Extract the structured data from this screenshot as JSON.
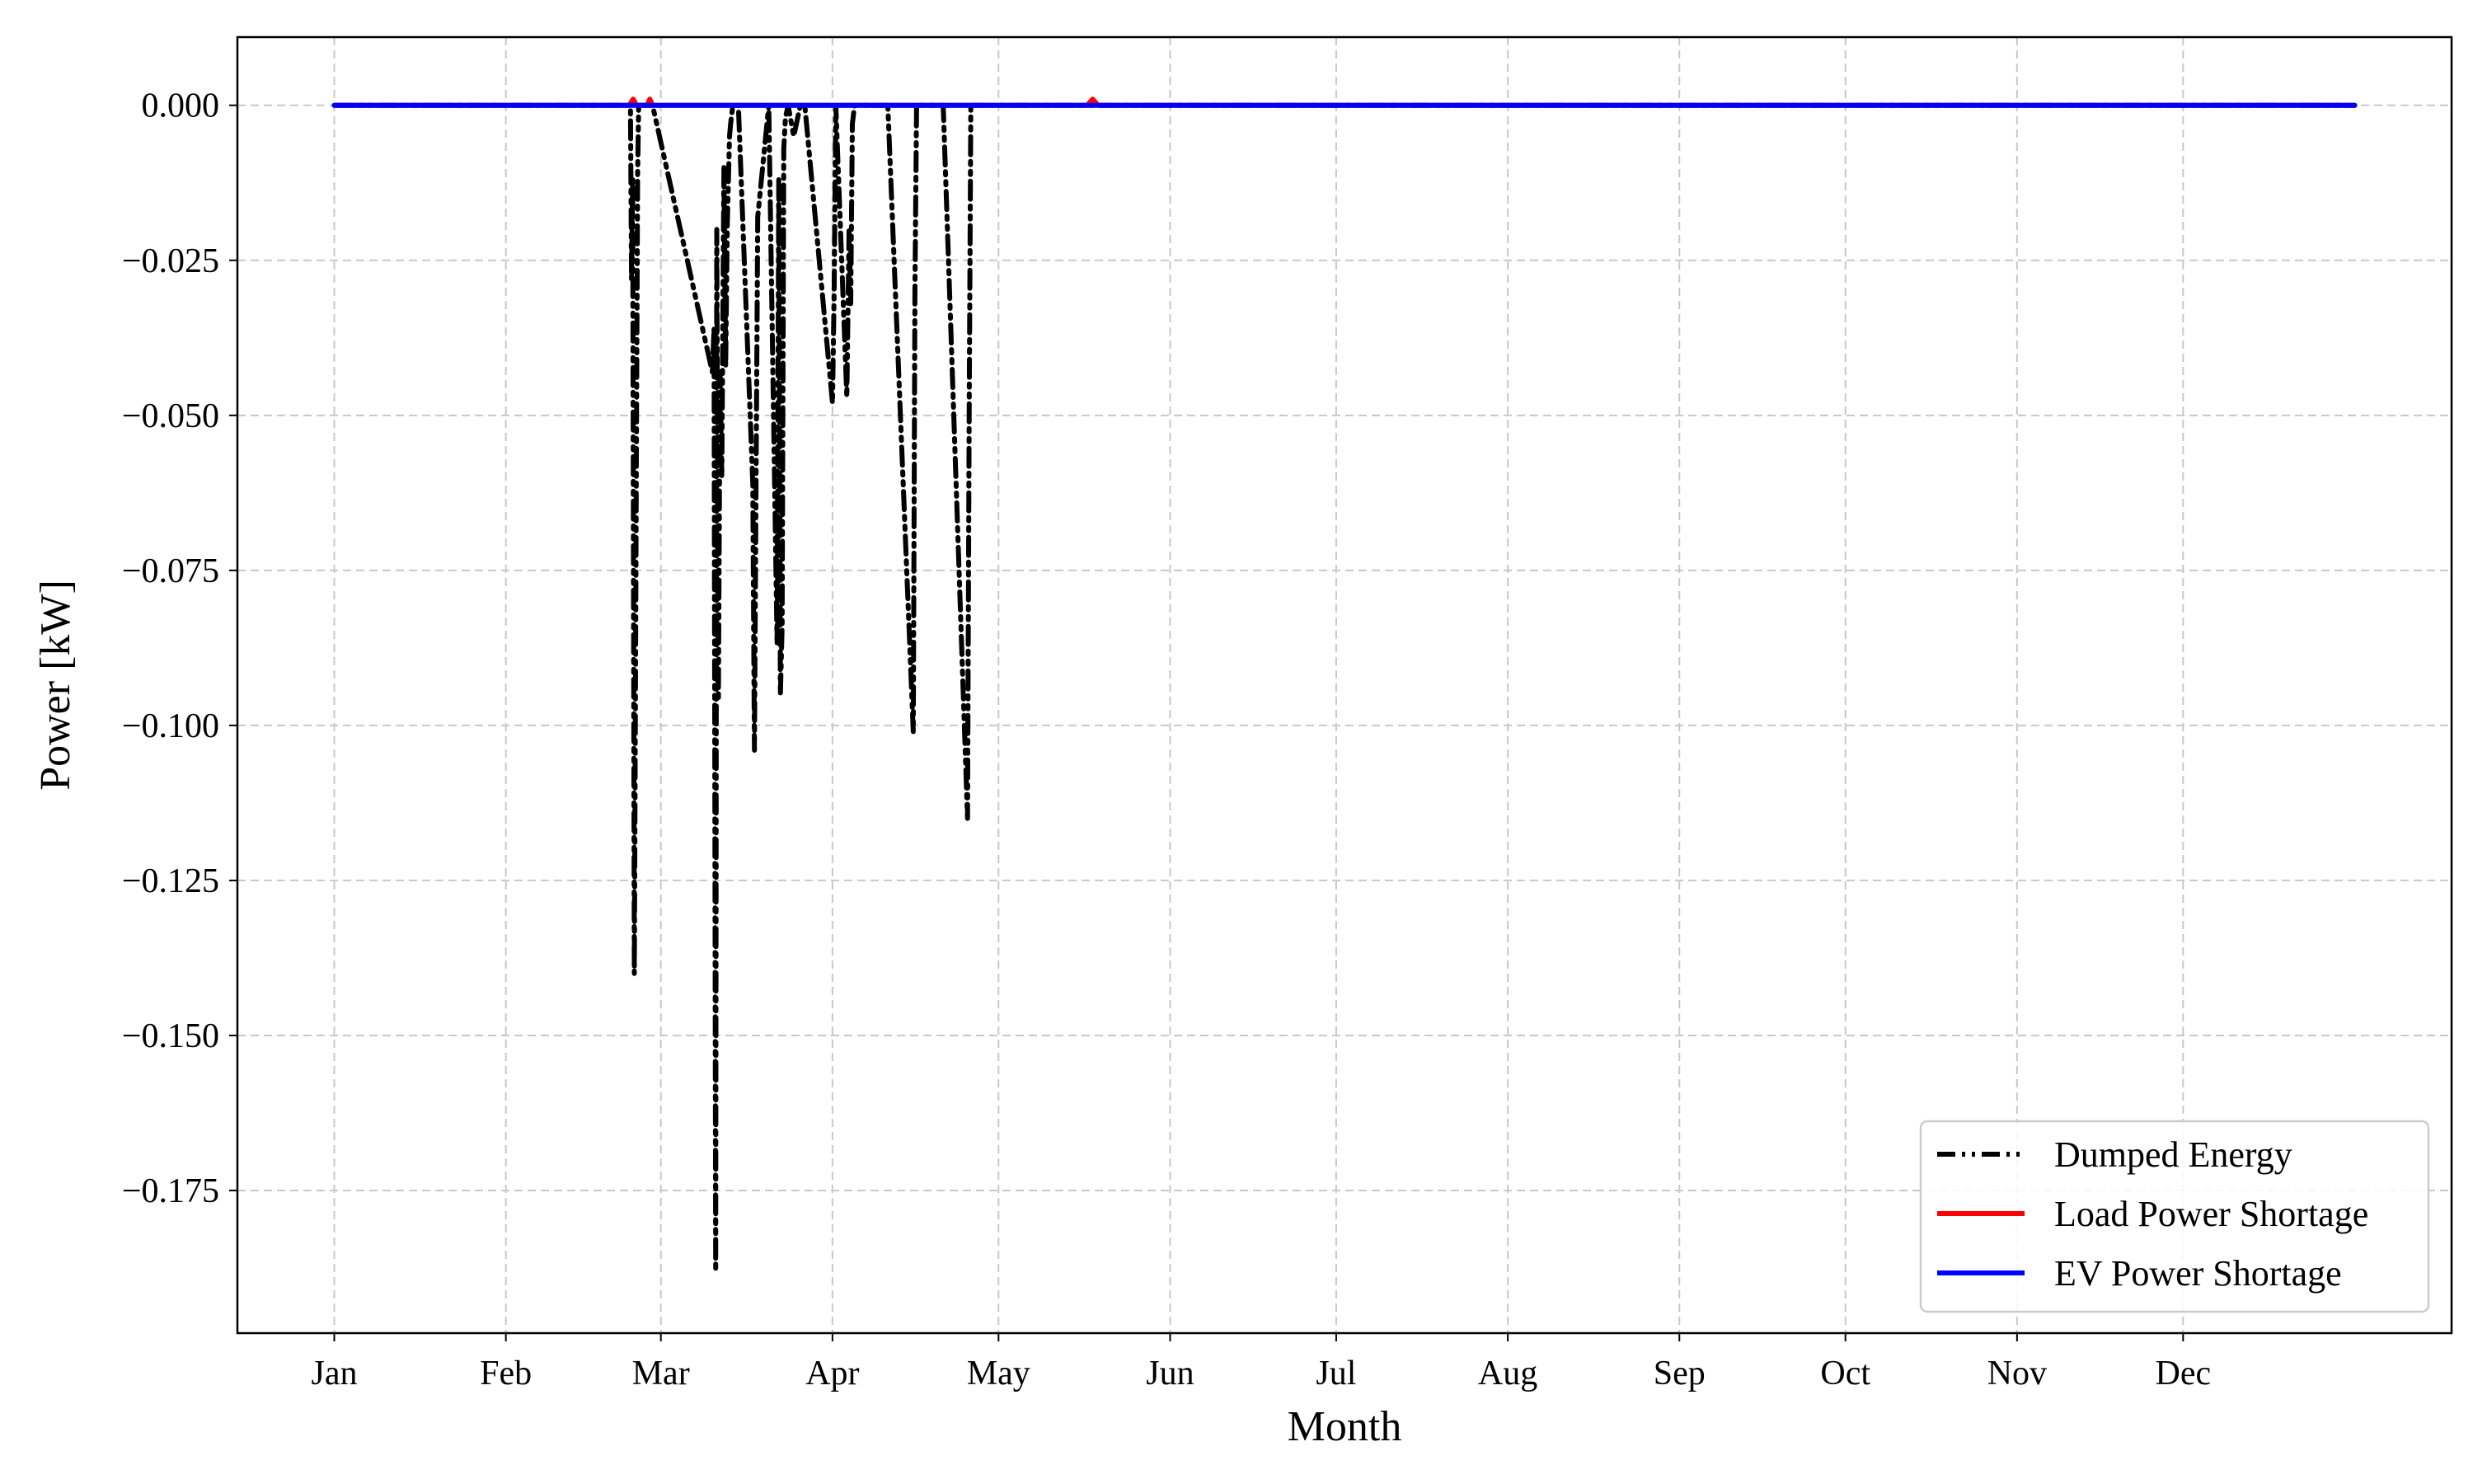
{
  "chart_data": {
    "type": "line",
    "title": "",
    "xlabel": "Month",
    "ylabel": "Power [kW]",
    "x_tick_labels": [
      "Jan",
      "Feb",
      "Mar",
      "Apr",
      "May",
      "Jun",
      "Jul",
      "Aug",
      "Sep",
      "Oct",
      "Nov",
      "Dec"
    ],
    "x_tick_days": [
      0,
      31,
      59,
      90,
      120,
      151,
      181,
      212,
      243,
      273,
      304,
      334
    ],
    "xlim_days": [
      -17.5,
      382.5
    ],
    "y_ticks": [
      0.0,
      -0.025,
      -0.05,
      -0.075,
      -0.1,
      -0.125,
      -0.15,
      -0.175
    ],
    "y_tick_labels": [
      "0.000",
      "−0.025",
      "−0.050",
      "−0.075",
      "−0.100",
      "−0.125",
      "−0.150",
      "−0.175"
    ],
    "ylim": [
      -0.198,
      0.011
    ],
    "grid": true,
    "legend_position": "lower right",
    "series": [
      {
        "name": "Dumped Energy",
        "color": "#000000",
        "style": "dash-dot-dot",
        "x_days": [
          0,
          53.5,
          53.7,
          53.9,
          54.2,
          54.6,
          54.8,
          55.0,
          56.0,
          57.5,
          68.3,
          68.6,
          68.9,
          69.1,
          69.4,
          69.7,
          70.0,
          70.4,
          70.7,
          71.0,
          71.4,
          71.6,
          72.0,
          73.0,
          75.6,
          75.9,
          76.2,
          76.5,
          78.5,
          80.0,
          80.3,
          80.6,
          80.9,
          81.2,
          81.5,
          82.0,
          83.0,
          84.2,
          85.0,
          90.0,
          90.3,
          90.6,
          92.6,
          93.0,
          93.3,
          93.6,
          94.0,
          100.0,
          104.6,
          104.9,
          105.2,
          110.0,
          114.4,
          114.7,
          115.0,
          130.0,
          200.0,
          365.0
        ],
        "values": [
          0,
          0,
          -0.028,
          -0.012,
          -0.14,
          -0.05,
          -0.011,
          0,
          0,
          0,
          -0.043,
          -0.036,
          -0.188,
          -0.02,
          -0.096,
          -0.043,
          -0.06,
          -0.01,
          -0.042,
          -0.019,
          -0.005,
          -0.003,
          0,
          0,
          -0.061,
          -0.104,
          -0.06,
          -0.018,
          0,
          -0.087,
          -0.012,
          -0.095,
          -0.084,
          -0.007,
          -0.002,
          0,
          -0.005,
          0,
          0,
          -0.048,
          -0.03,
          0,
          -0.047,
          -0.02,
          -0.032,
          -0.003,
          0,
          0,
          -0.101,
          -0.03,
          0,
          0,
          -0.115,
          -0.05,
          0,
          0,
          0,
          0
        ]
      },
      {
        "name": "Load Power Shortage",
        "color": "#ff0000",
        "style": "solid",
        "x_days": [
          0,
          53.3,
          54.0,
          54.6,
          56.5,
          57.0,
          57.5,
          136.0,
          137.0,
          138.0,
          365.0
        ],
        "values": [
          0,
          0,
          0.001,
          0,
          0,
          0.001,
          0,
          0,
          0.001,
          0,
          0
        ]
      },
      {
        "name": "EV Power Shortage",
        "color": "#0000ff",
        "style": "solid",
        "x_days": [
          0,
          365
        ],
        "values": [
          0,
          0
        ]
      }
    ]
  }
}
